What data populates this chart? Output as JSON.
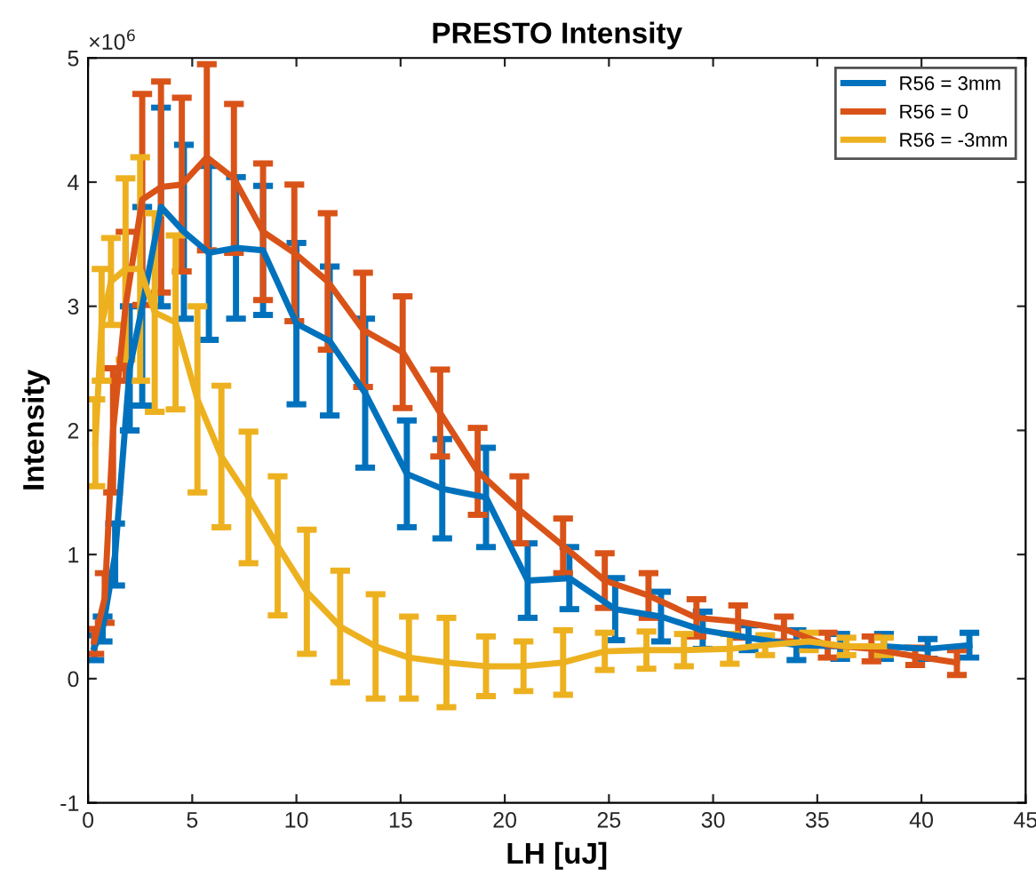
{
  "chart_data": {
    "type": "line",
    "title": "PRESTO Intensity",
    "xlabel": "LH [uJ]",
    "ylabel": "Intensity",
    "annotations": [
      "×10$^{6}$"
    ],
    "xlim": [
      0,
      45
    ],
    "xticks": [
      0,
      5,
      10,
      15,
      20,
      25,
      30,
      35,
      40,
      45
    ],
    "ylim": [
      -1,
      5
    ],
    "yticks": [
      -1,
      0,
      1,
      2,
      3,
      4,
      5
    ],
    "grid": false,
    "legend": "top right",
    "marker": "none",
    "line_style": "solid",
    "series": [
      {
        "name": "R56 = 3mm",
        "color": "#0072bd",
        "x": [
          0.3,
          0.7,
          1.3,
          2.0,
          2.6,
          3.5,
          4.6,
          5.8,
          7.1,
          8.4,
          10.0,
          11.6,
          13.3,
          15.3,
          17.0,
          19.1,
          21.1,
          23.1,
          25.3,
          27.5,
          29.5,
          31.7,
          34.0,
          36.1,
          38.2,
          40.3,
          42.3
        ],
        "values": [
          0.25,
          0.4,
          1.0,
          2.5,
          3.0,
          3.8,
          3.6,
          3.43,
          3.47,
          3.45,
          2.86,
          2.72,
          2.3,
          1.65,
          1.53,
          1.46,
          0.79,
          0.81,
          0.56,
          0.5,
          0.39,
          0.33,
          0.27,
          0.26,
          0.26,
          0.24,
          0.27
        ],
        "errors": [
          0.1,
          0.1,
          0.25,
          0.5,
          0.8,
          0.8,
          0.7,
          0.7,
          0.57,
          0.52,
          0.65,
          0.6,
          0.6,
          0.43,
          0.4,
          0.4,
          0.3,
          0.25,
          0.25,
          0.2,
          0.15,
          0.1,
          0.12,
          0.1,
          0.1,
          0.08,
          0.1
        ]
      },
      {
        "name": "R56 = 0",
        "color": "#d95319",
        "x": [
          0.3,
          0.8,
          1.2,
          1.8,
          2.6,
          3.5,
          4.5,
          5.7,
          7.0,
          8.4,
          9.9,
          11.5,
          13.2,
          15.1,
          16.9,
          18.7,
          20.7,
          22.8,
          24.8,
          26.9,
          29.2,
          31.2,
          33.4,
          35.5,
          37.6,
          39.7,
          41.7
        ],
        "values": [
          0.3,
          0.65,
          2.0,
          3.0,
          3.86,
          3.96,
          3.98,
          4.2,
          4.03,
          3.6,
          3.43,
          3.2,
          2.81,
          2.63,
          2.14,
          1.67,
          1.36,
          1.07,
          0.79,
          0.67,
          0.49,
          0.46,
          0.4,
          0.27,
          0.24,
          0.18,
          0.13
        ],
        "errors": [
          0.1,
          0.2,
          0.5,
          0.6,
          0.85,
          0.85,
          0.7,
          0.75,
          0.6,
          0.55,
          0.55,
          0.55,
          0.46,
          0.45,
          0.35,
          0.35,
          0.27,
          0.22,
          0.22,
          0.18,
          0.15,
          0.13,
          0.1,
          0.1,
          0.1,
          0.07,
          0.1
        ]
      },
      {
        "name": "R56 = -3mm",
        "color": "#edb120",
        "x": [
          0.35,
          0.65,
          1.1,
          1.8,
          2.5,
          3.2,
          4.2,
          5.25,
          6.4,
          7.7,
          9.1,
          10.5,
          12.1,
          13.8,
          15.4,
          17.2,
          19.1,
          20.9,
          22.8,
          24.8,
          26.8,
          28.6,
          30.8,
          32.5,
          34.6,
          36.4,
          38.2
        ],
        "values": [
          1.9,
          2.85,
          3.2,
          3.3,
          3.3,
          2.95,
          2.87,
          2.25,
          1.79,
          1.46,
          1.07,
          0.7,
          0.42,
          0.26,
          0.17,
          0.13,
          0.1,
          0.1,
          0.13,
          0.22,
          0.23,
          0.23,
          0.24,
          0.27,
          0.3,
          0.26,
          0.26
        ],
        "errors": [
          0.35,
          0.45,
          0.35,
          0.73,
          0.9,
          0.8,
          0.7,
          0.75,
          0.57,
          0.53,
          0.56,
          0.5,
          0.45,
          0.42,
          0.33,
          0.36,
          0.24,
          0.2,
          0.26,
          0.15,
          0.15,
          0.13,
          0.12,
          0.08,
          0.07,
          0.07,
          0.07
        ]
      }
    ]
  }
}
